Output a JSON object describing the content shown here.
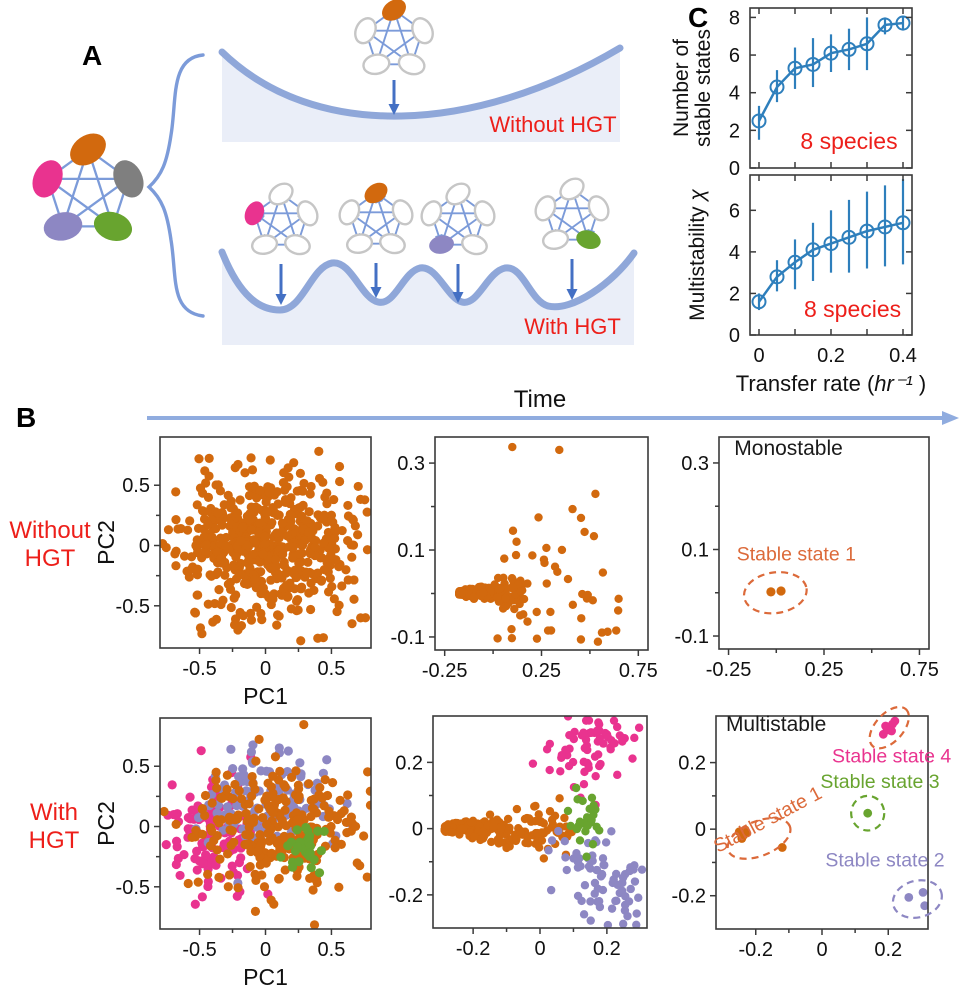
{
  "figure": {
    "panelA": {
      "label": "A",
      "without_label": "Without HGT",
      "with_label": "With HGT"
    },
    "panelB": {
      "label": "B",
      "time_label": "Time",
      "row1_label": [
        "Without",
        "HGT"
      ],
      "row2_label": [
        "With",
        "HGT"
      ]
    },
    "panelC": {
      "label": "C"
    }
  },
  "colors": {
    "orange": "#D2690E",
    "pink": "#E9338F",
    "purple": "#8D87C3",
    "green": "#68A42F",
    "gray": "#7F7F7F",
    "blue_line": "#2E7FBC",
    "red_text": "#ED1F1A",
    "state1": "#DC6A3A",
    "net_edge": "#7C9BD9",
    "empty_oval": "#C6C6C6",
    "landscape_stroke": "#8FA7D9",
    "landscape_fill": "#EAEEF8",
    "arrow": "#4470C4",
    "time_arrow": "#90ACDF"
  },
  "networks": {
    "main": {
      "colored": {
        "top": "orange",
        "left": "pink",
        "right": "gray",
        "bottom_left": "purple",
        "bottom_right": "green"
      }
    },
    "without": [
      {
        "colored": {
          "top": "orange"
        }
      }
    ],
    "with": [
      {
        "colored": {
          "left": "pink"
        }
      },
      {
        "colored": {
          "top": "orange"
        }
      },
      {
        "colored": {
          "bottom_left": "purple"
        }
      },
      {
        "colored": {
          "bottom_right": "green"
        }
      }
    ]
  },
  "chart_data": [
    {
      "id": "c_top",
      "type": "errorline",
      "color": "blue_line",
      "x": [
        0,
        0.05,
        0.1,
        0.15,
        0.2,
        0.25,
        0.3,
        0.35,
        0.4
      ],
      "y": [
        2.5,
        4.3,
        5.3,
        5.5,
        6.1,
        6.3,
        6.6,
        7.6,
        7.7
      ],
      "err_lo": [
        1.5,
        3.5,
        4.2,
        4.3,
        5.1,
        5.2,
        5.2,
        7.1,
        7.3
      ],
      "err_hi": [
        3.3,
        5.2,
        6.4,
        6.9,
        7.1,
        7.4,
        8.0,
        8.0,
        8.05
      ],
      "xlim": [
        -0.025,
        0.425
      ],
      "ylim": [
        0,
        8.5
      ],
      "xticks": [
        {
          "v": 0
        },
        {
          "v": 0.1
        },
        {
          "v": 0.2
        },
        {
          "v": 0.3
        },
        {
          "v": 0.4
        }
      ],
      "yticks": [
        {
          "v": 0,
          "label": "0"
        },
        {
          "v": 2,
          "label": "2"
        },
        {
          "v": 4,
          "label": "4"
        },
        {
          "v": 6,
          "label": "6"
        },
        {
          "v": 8,
          "label": "8"
        }
      ],
      "ylabel_lines": [
        "Number of",
        "stable states"
      ],
      "annotations": [
        {
          "text": "8 species",
          "x": 0.25,
          "y": 1.0,
          "color": "red_text",
          "size": 23,
          "anchor": "middle"
        }
      ]
    },
    {
      "id": "c_bot",
      "type": "errorline",
      "color": "blue_line",
      "x": [
        0,
        0.05,
        0.1,
        0.15,
        0.2,
        0.25,
        0.3,
        0.35,
        0.4
      ],
      "y": [
        1.6,
        2.8,
        3.5,
        4.1,
        4.4,
        4.7,
        5.0,
        5.2,
        5.4
      ],
      "err_lo": [
        1.2,
        2.1,
        2.2,
        2.6,
        3.0,
        3.0,
        3.2,
        3.3,
        3.4
      ],
      "err_hi": [
        2.0,
        3.6,
        4.6,
        5.4,
        6.0,
        6.5,
        6.9,
        7.2,
        7.5
      ],
      "xlim": [
        -0.025,
        0.425
      ],
      "ylim": [
        0,
        7.7
      ],
      "xticks": [
        {
          "v": 0,
          "label": "0"
        },
        {
          "v": 0.1
        },
        {
          "v": 0.2,
          "label": "0.2"
        },
        {
          "v": 0.3
        },
        {
          "v": 0.4,
          "label": "0.4"
        }
      ],
      "yticks": [
        {
          "v": 0,
          "label": "0"
        },
        {
          "v": 2,
          "label": "2"
        },
        {
          "v": 4,
          "label": "4"
        },
        {
          "v": 6,
          "label": "6"
        }
      ],
      "ylabel_segments": [
        [
          "Multistability ",
          false
        ],
        [
          "χ",
          true
        ]
      ],
      "xlabel_segments": [
        [
          "Transfer rate (",
          false
        ],
        [
          "hr",
          true
        ],
        [
          "⁻¹",
          true
        ],
        [
          " )",
          false
        ]
      ],
      "annotations": [
        {
          "text": "8 species",
          "x": 0.26,
          "y": 0.87,
          "color": "red_text",
          "size": 23,
          "anchor": "middle"
        }
      ]
    },
    {
      "id": "b1",
      "type": "scatter",
      "dot_r": 4.6,
      "xlim": [
        -0.8,
        0.8
      ],
      "ylim": [
        -0.85,
        0.9
      ],
      "xticks": [
        {
          "v": -0.5,
          "label": "-0.5"
        },
        {
          "v": -0.25
        },
        {
          "v": 0,
          "label": "0"
        },
        {
          "v": 0.25
        },
        {
          "v": 0.5,
          "label": "0.5"
        }
      ],
      "yticks": [
        {
          "v": 0.5,
          "label": "0.5"
        },
        {
          "v": 0.25
        },
        {
          "v": 0,
          "label": "0"
        },
        {
          "v": -0.25
        },
        {
          "v": -0.5,
          "label": "-0.5"
        }
      ],
      "xlabel": "PC1",
      "ylabel": "PC2",
      "clusters": [
        {
          "color": "orange",
          "kind": "gauss",
          "n": 560,
          "cx": 0,
          "cy": 0.02,
          "sx": 0.33,
          "sy": 0.31,
          "seed": 11
        }
      ]
    },
    {
      "id": "b2",
      "type": "scatter",
      "dot_r": 4.2,
      "xlim": [
        -0.3,
        0.8
      ],
      "ylim": [
        -0.13,
        0.36
      ],
      "xticks": [
        {
          "v": -0.25,
          "label": "-0.25"
        },
        {
          "v": 0
        },
        {
          "v": 0.25,
          "label": "0.25"
        },
        {
          "v": 0.5
        },
        {
          "v": 0.75,
          "label": "0.75"
        }
      ],
      "yticks": [
        {
          "v": 0.3,
          "label": "0.3"
        },
        {
          "v": 0.2
        },
        {
          "v": 0.1,
          "label": "0.1"
        },
        {
          "v": 0
        },
        {
          "v": -0.1,
          "label": "-0.1"
        }
      ],
      "clusters": [
        {
          "color": "orange",
          "kind": "wedge",
          "n": 185,
          "ax": -0.175,
          "ay": 0.002,
          "dir": 1,
          "len": 0.33,
          "spread": 0.055,
          "dense": 1.9,
          "seed": 21
        },
        {
          "color": "orange",
          "kind": "uniform",
          "n": 46,
          "x0": 0.02,
          "x1": 0.72,
          "y0": -0.115,
          "y1": 0.13,
          "seed": 22
        },
        {
          "color": "orange",
          "kind": "uniform",
          "n": 9,
          "x0": 0.05,
          "x1": 0.62,
          "y0": 0.13,
          "y1": 0.34,
          "seed": 23
        }
      ]
    },
    {
      "id": "b3",
      "type": "scatter",
      "dot_r": 4.6,
      "xlim": [
        -0.3,
        0.8
      ],
      "ylim": [
        -0.13,
        0.36
      ],
      "xticks": [
        {
          "v": -0.25,
          "label": "-0.25"
        },
        {
          "v": 0
        },
        {
          "v": 0.25,
          "label": "0.25"
        },
        {
          "v": 0.5
        },
        {
          "v": 0.75,
          "label": "0.75"
        }
      ],
      "yticks": [
        {
          "v": 0.3,
          "label": "0.3"
        },
        {
          "v": 0.2
        },
        {
          "v": 0.1,
          "label": "0.1"
        },
        {
          "v": 0
        },
        {
          "v": -0.1,
          "label": "-0.1"
        }
      ],
      "title": {
        "text": "Monostable",
        "x": -0.22,
        "y": 0.318
      },
      "points": [
        {
          "color": "orange",
          "x": -0.028,
          "y": 0.002
        },
        {
          "color": "orange",
          "x": 0.025,
          "y": 0.004
        }
      ],
      "ellipses": [
        {
          "cx": -0.005,
          "cy": 0.0,
          "rx": 0.165,
          "ry": 0.047,
          "rot": -8,
          "color": "state1"
        }
      ],
      "labels": [
        {
          "text": "Stable state 1",
          "x": 0.105,
          "y": 0.075,
          "color": "state1",
          "size": 19.5,
          "anchor": "middle"
        }
      ]
    },
    {
      "id": "b4",
      "type": "scatter",
      "dot_r": 4.6,
      "xlim": [
        -0.8,
        0.8
      ],
      "ylim": [
        -0.85,
        0.9
      ],
      "xticks": [
        {
          "v": -0.5,
          "label": "-0.5"
        },
        {
          "v": -0.25
        },
        {
          "v": 0,
          "label": "0"
        },
        {
          "v": 0.25
        },
        {
          "v": 0.5,
          "label": "0.5"
        }
      ],
      "yticks": [
        {
          "v": 0.5,
          "label": "0.5"
        },
        {
          "v": 0.25
        },
        {
          "v": 0,
          "label": "0"
        },
        {
          "v": -0.25
        },
        {
          "v": -0.5,
          "label": "-0.5"
        }
      ],
      "xlabel": "PC1",
      "ylabel": "PC2",
      "clusters": [
        {
          "color": "pink",
          "kind": "gauss",
          "n": 115,
          "cx": -0.38,
          "cy": -0.06,
          "sx": 0.17,
          "sy": 0.27,
          "seed": 41
        },
        {
          "color": "purple",
          "kind": "gauss",
          "n": 115,
          "cx": -0.03,
          "cy": 0.22,
          "sx": 0.27,
          "sy": 0.21,
          "seed": 42
        },
        {
          "color": "orange",
          "kind": "gauss",
          "n": 270,
          "cx": 0.1,
          "cy": -0.07,
          "sx": 0.3,
          "sy": 0.28,
          "seed": 43
        },
        {
          "color": "green",
          "kind": "gauss",
          "n": 30,
          "cx": 0.3,
          "cy": -0.2,
          "sx": 0.1,
          "sy": 0.12,
          "seed": 44
        }
      ]
    },
    {
      "id": "b5",
      "type": "scatter",
      "dot_r": 4.2,
      "xlim": [
        -0.32,
        0.32
      ],
      "ylim": [
        -0.3,
        0.34
      ],
      "xticks": [
        {
          "v": -0.2,
          "label": "-0.2"
        },
        {
          "v": -0.1
        },
        {
          "v": 0,
          "label": "0"
        },
        {
          "v": 0.1
        },
        {
          "v": 0.2,
          "label": "0.2"
        }
      ],
      "yticks": [
        {
          "v": 0.2,
          "label": "0.2"
        },
        {
          "v": 0.1
        },
        {
          "v": 0,
          "label": "0"
        },
        {
          "v": -0.1
        },
        {
          "v": -0.2,
          "label": "-0.2"
        }
      ],
      "clusters": [
        {
          "color": "orange",
          "kind": "wedge",
          "n": 205,
          "ax": -0.285,
          "ay": 0.0,
          "dir": 1,
          "len": 0.38,
          "spread": 0.115,
          "dense": 1.6,
          "seed": 51
        },
        {
          "color": "pink",
          "kind": "gauss",
          "n": 42,
          "cx": 0.2,
          "cy": 0.28,
          "sx": 0.055,
          "sy": 0.04,
          "seed": 52
        },
        {
          "color": "pink",
          "kind": "gauss",
          "n": 26,
          "cx": 0.11,
          "cy": 0.18,
          "sx": 0.06,
          "sy": 0.05,
          "seed": 53
        },
        {
          "color": "purple",
          "kind": "gauss",
          "n": 52,
          "cx": 0.21,
          "cy": -0.18,
          "sx": 0.07,
          "sy": 0.065,
          "seed": 54
        },
        {
          "color": "purple",
          "kind": "gauss",
          "n": 22,
          "cx": 0.1,
          "cy": -0.09,
          "sx": 0.05,
          "sy": 0.04,
          "seed": 55
        },
        {
          "color": "green",
          "kind": "gauss",
          "n": 26,
          "cx": 0.135,
          "cy": 0.02,
          "sx": 0.023,
          "sy": 0.05,
          "seed": 56
        }
      ]
    },
    {
      "id": "b6",
      "type": "scatter",
      "dot_r": 4.4,
      "xlim": [
        -0.32,
        0.32
      ],
      "ylim": [
        -0.3,
        0.34
      ],
      "xticks": [
        {
          "v": -0.2,
          "label": "-0.2"
        },
        {
          "v": -0.1
        },
        {
          "v": 0,
          "label": "0"
        },
        {
          "v": 0.1
        },
        {
          "v": 0.2,
          "label": "0.2"
        }
      ],
      "yticks": [
        {
          "v": 0.2,
          "label": "0.2"
        },
        {
          "v": 0.1
        },
        {
          "v": 0,
          "label": "0"
        },
        {
          "v": -0.1
        },
        {
          "v": -0.2,
          "label": "-0.2"
        }
      ],
      "title": {
        "text": "Multistable",
        "x": -0.29,
        "y": 0.295
      },
      "points": [
        {
          "color": "orange",
          "x": -0.25,
          "y": -0.008
        },
        {
          "color": "orange",
          "x": -0.238,
          "y": -0.02
        },
        {
          "color": "orange",
          "x": -0.228,
          "y": -0.012
        },
        {
          "color": "orange",
          "x": -0.242,
          "y": -0.028
        },
        {
          "color": "orange",
          "x": -0.232,
          "y": -0.002
        },
        {
          "color": "orange",
          "x": -0.12,
          "y": -0.055
        },
        {
          "color": "pink",
          "x": 0.185,
          "y": 0.285
        },
        {
          "color": "pink",
          "x": 0.197,
          "y": 0.298
        },
        {
          "color": "pink",
          "x": 0.205,
          "y": 0.307
        },
        {
          "color": "pink",
          "x": 0.213,
          "y": 0.316
        },
        {
          "color": "pink",
          "x": 0.22,
          "y": 0.325
        },
        {
          "color": "pink",
          "x": 0.192,
          "y": 0.31
        },
        {
          "color": "pink",
          "x": 0.21,
          "y": 0.295
        },
        {
          "color": "green",
          "x": 0.138,
          "y": 0.048
        },
        {
          "color": "purple",
          "x": 0.262,
          "y": -0.205
        },
        {
          "color": "purple",
          "x": 0.305,
          "y": -0.19
        },
        {
          "color": "purple",
          "x": 0.31,
          "y": -0.23
        }
      ],
      "ellipses": [
        {
          "cx": -0.19,
          "cy": -0.028,
          "rx": 0.1,
          "ry": 0.052,
          "rot": -22,
          "color": "state1"
        },
        {
          "cx": 0.203,
          "cy": 0.305,
          "rx": 0.075,
          "ry": 0.042,
          "rot": -48,
          "color": "state1"
        },
        {
          "cx": 0.138,
          "cy": 0.048,
          "rx": 0.05,
          "ry": 0.052,
          "rot": 0,
          "color": "green"
        },
        {
          "cx": 0.288,
          "cy": -0.21,
          "rx": 0.075,
          "ry": 0.055,
          "rot": -15,
          "color": "purple"
        }
      ],
      "labels": [
        {
          "text": "Stable state 1",
          "x": -0.155,
          "y": 0.012,
          "color": "state1",
          "size": 19.5,
          "anchor": "middle",
          "rot": -28
        },
        {
          "text": "Stable state 4",
          "x": 0.21,
          "y": 0.2,
          "color": "pink",
          "size": 19.5,
          "anchor": "middle"
        },
        {
          "text": "Stable state 3",
          "x": 0.175,
          "y": 0.123,
          "color": "green",
          "size": 19.5,
          "anchor": "middle"
        },
        {
          "text": "Stable state 2",
          "x": 0.19,
          "y": -0.112,
          "color": "purple",
          "size": 19.5,
          "anchor": "middle"
        }
      ]
    }
  ]
}
